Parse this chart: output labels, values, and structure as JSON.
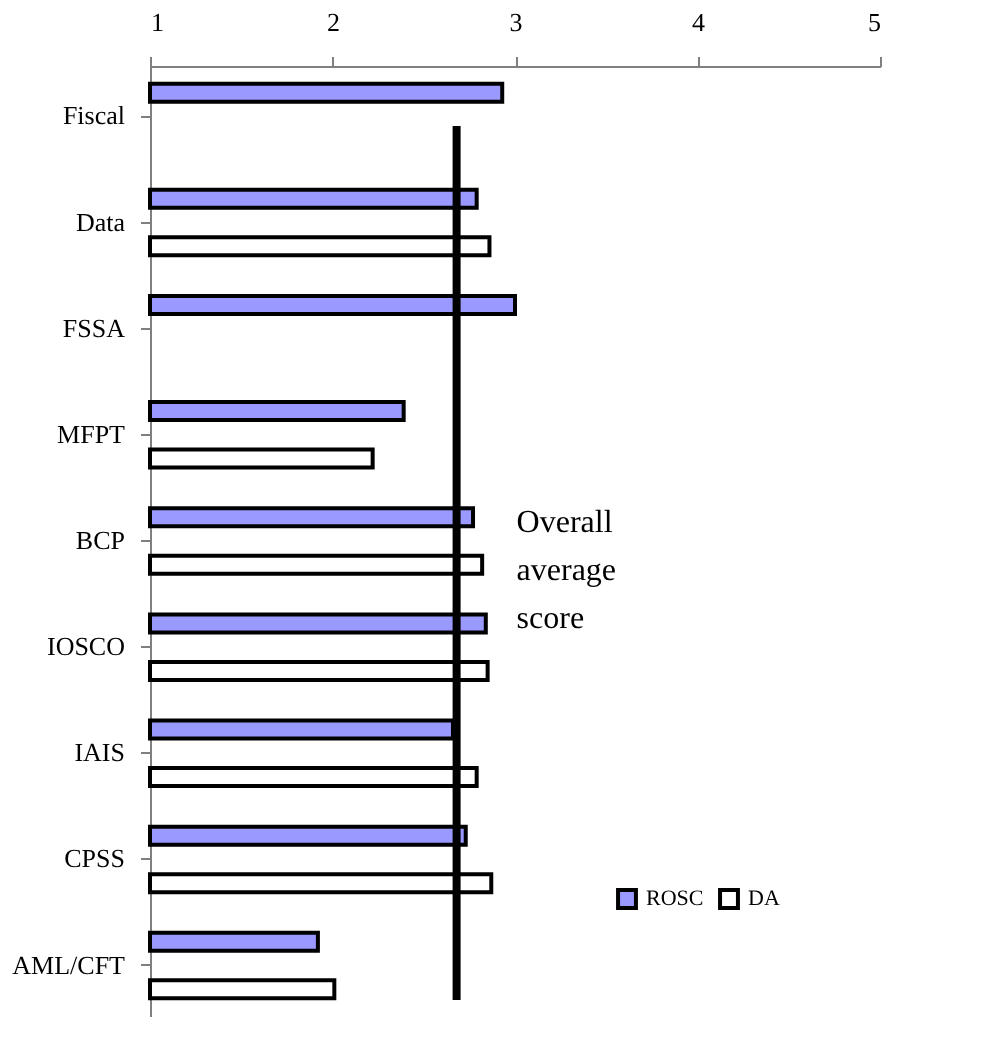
{
  "chart_data": {
    "type": "bar",
    "orientation": "horizontal",
    "categories": [
      "Fiscal",
      "Data",
      "FSSA",
      "MFPT",
      "BCP",
      "IOSCO",
      "IAIS",
      "CPSS",
      "AML/CFT"
    ],
    "series": [
      {
        "name": "ROSC",
        "color": "#9999ff",
        "values": [
          2.93,
          2.79,
          3.0,
          2.39,
          2.77,
          2.84,
          2.66,
          2.73,
          1.92
        ]
      },
      {
        "name": "DA",
        "color": "#ffffff",
        "values": [
          null,
          2.86,
          null,
          2.22,
          2.82,
          2.85,
          2.79,
          2.87,
          2.01
        ]
      }
    ],
    "xlim": [
      1,
      5
    ],
    "xticks": [
      1,
      2,
      3,
      4,
      5
    ],
    "ref_lines": [
      {
        "axis": "x",
        "value": 2.68,
        "label": "Overall average score",
        "color": "#000000"
      }
    ],
    "legend": "bottom right",
    "grid": false
  }
}
